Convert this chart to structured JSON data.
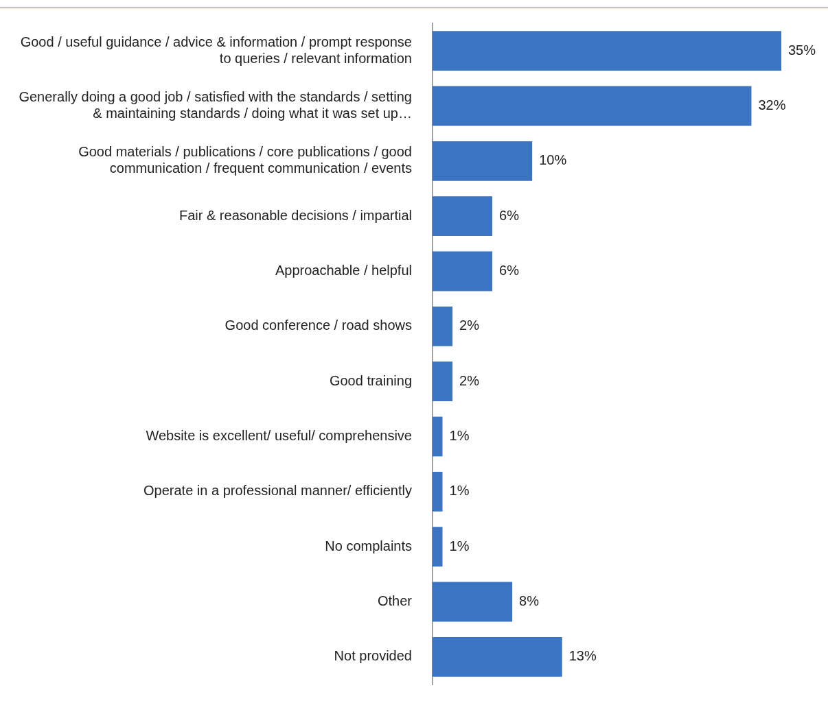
{
  "chart_data": {
    "type": "bar",
    "orientation": "horizontal",
    "categories": [
      "Good / useful guidance / advice & information / prompt response to queries / relevant information",
      "Generally doing a good job / satisfied with the standards / setting & maintaining standards / doing what it was set up…",
      "Good materials / publications / core publications / good communication / frequent communication / events",
      "Fair & reasonable decisions / impartial",
      "Approachable / helpful",
      "Good conference / road shows",
      "Good training",
      "Website is excellent/ useful/ comprehensive",
      "Operate in a professional manner/ efficiently",
      "No complaints",
      "Other",
      "Not provided"
    ],
    "values": [
      35,
      32,
      10,
      6,
      6,
      2,
      2,
      1,
      1,
      1,
      8,
      13
    ],
    "value_labels": [
      "35%",
      "32%",
      "10%",
      "6%",
      "6%",
      "2%",
      "2%",
      "1%",
      "1%",
      "1%",
      "8%",
      "13%"
    ],
    "color": "#3a74c2"
  }
}
